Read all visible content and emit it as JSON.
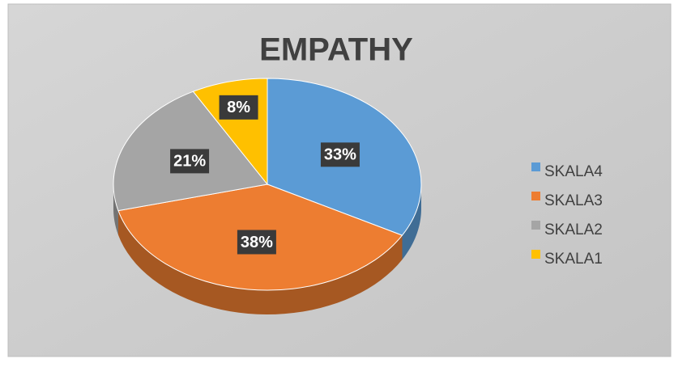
{
  "chart_data": {
    "type": "pie",
    "title": "EMPATHY",
    "categories": [
      "SKALA4",
      "SKALA3",
      "SKALA2",
      "SKALA1"
    ],
    "values": [
      33,
      38,
      21,
      8
    ],
    "value_labels": [
      "33%",
      "38%",
      "21%",
      "8%"
    ],
    "colors": [
      "#5b9bd5",
      "#ed7d31",
      "#a5a5a5",
      "#ffc000"
    ],
    "legend": "right"
  }
}
